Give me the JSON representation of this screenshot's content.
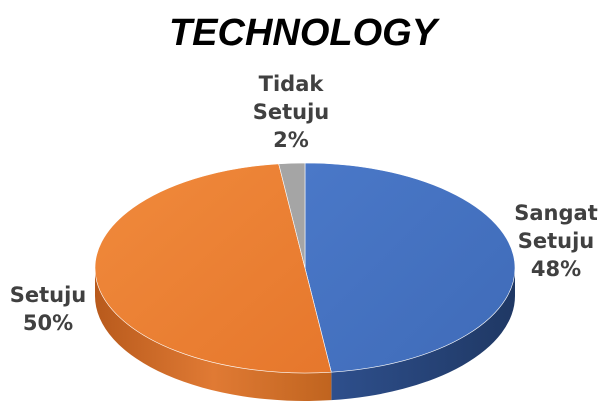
{
  "chart_data": {
    "type": "pie",
    "title": "TECHNOLOGY",
    "slices": [
      {
        "name": "Sangat Setuju",
        "label_lines": [
          "Sangat",
          "Setuju"
        ],
        "percent_label": "48%",
        "value": 48,
        "color": "#4472c4"
      },
      {
        "name": "Setuju",
        "label_lines": [
          "Setuju"
        ],
        "percent_label": "50%",
        "value": 50,
        "color": "#ed7d31"
      },
      {
        "name": "Tidak Setuju",
        "label_lines": [
          "Tidak",
          "Setuju"
        ],
        "percent_label": "2%",
        "value": 2,
        "color": "#a5a5a5"
      }
    ],
    "style": "3d"
  }
}
